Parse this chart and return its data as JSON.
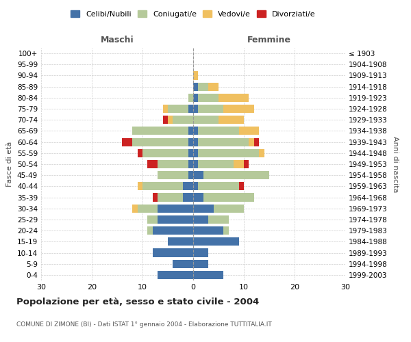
{
  "age_groups": [
    "100+",
    "95-99",
    "90-94",
    "85-89",
    "80-84",
    "75-79",
    "70-74",
    "65-69",
    "60-64",
    "55-59",
    "50-54",
    "45-49",
    "40-44",
    "35-39",
    "30-34",
    "25-29",
    "20-24",
    "15-19",
    "10-14",
    "5-9",
    "0-4"
  ],
  "birth_years": [
    "≤ 1903",
    "1904-1908",
    "1909-1913",
    "1914-1918",
    "1919-1923",
    "1924-1928",
    "1929-1933",
    "1934-1938",
    "1939-1943",
    "1944-1948",
    "1949-1953",
    "1954-1958",
    "1959-1963",
    "1964-1968",
    "1969-1973",
    "1974-1978",
    "1979-1983",
    "1984-1988",
    "1989-1993",
    "1994-1998",
    "1999-2003"
  ],
  "colors": {
    "celibi": "#4472a8",
    "coniugati": "#b5c99a",
    "vedovi": "#f0c060",
    "divorziati": "#cc2222"
  },
  "males": {
    "celibi": [
      0,
      0,
      0,
      0,
      0,
      1,
      0,
      1,
      1,
      1,
      1,
      1,
      2,
      2,
      7,
      7,
      8,
      5,
      8,
      4,
      7
    ],
    "coniugati": [
      0,
      0,
      0,
      0,
      1,
      4,
      4,
      11,
      11,
      9,
      6,
      6,
      8,
      5,
      4,
      2,
      1,
      0,
      0,
      0,
      0
    ],
    "vedovi": [
      0,
      0,
      0,
      0,
      0,
      1,
      1,
      0,
      0,
      0,
      0,
      0,
      1,
      0,
      1,
      0,
      0,
      0,
      0,
      0,
      0
    ],
    "divorziati": [
      0,
      0,
      0,
      0,
      0,
      0,
      1,
      0,
      2,
      1,
      2,
      0,
      0,
      1,
      0,
      0,
      0,
      0,
      0,
      0,
      0
    ]
  },
  "females": {
    "celibi": [
      0,
      0,
      0,
      1,
      1,
      1,
      0,
      1,
      1,
      1,
      1,
      2,
      1,
      2,
      4,
      3,
      6,
      9,
      3,
      3,
      6
    ],
    "coniugati": [
      0,
      0,
      0,
      2,
      4,
      5,
      5,
      8,
      10,
      12,
      7,
      13,
      8,
      10,
      6,
      4,
      1,
      0,
      0,
      0,
      0
    ],
    "vedovi": [
      0,
      0,
      1,
      2,
      6,
      6,
      5,
      4,
      1,
      1,
      2,
      0,
      0,
      0,
      0,
      0,
      0,
      0,
      0,
      0,
      0
    ],
    "divorziati": [
      0,
      0,
      0,
      0,
      0,
      0,
      0,
      0,
      1,
      0,
      1,
      0,
      1,
      0,
      0,
      0,
      0,
      0,
      0,
      0,
      0
    ]
  },
  "title": "Popolazione per età, sesso e stato civile - 2004",
  "subtitle": "COMUNE DI ZIMONE (BI) - Dati ISTAT 1° gennaio 2004 - Elaborazione TUTTITALIA.IT",
  "xlabel_left": "Maschi",
  "xlabel_right": "Femmine",
  "ylabel_left": "Fasce di età",
  "ylabel_right": "Anni di nascita",
  "xlim": 30,
  "legend_labels": [
    "Celibi/Nubili",
    "Coniugati/e",
    "Vedovi/e",
    "Divorziati/e"
  ],
  "background_color": "#ffffff",
  "grid_color": "#cccccc"
}
